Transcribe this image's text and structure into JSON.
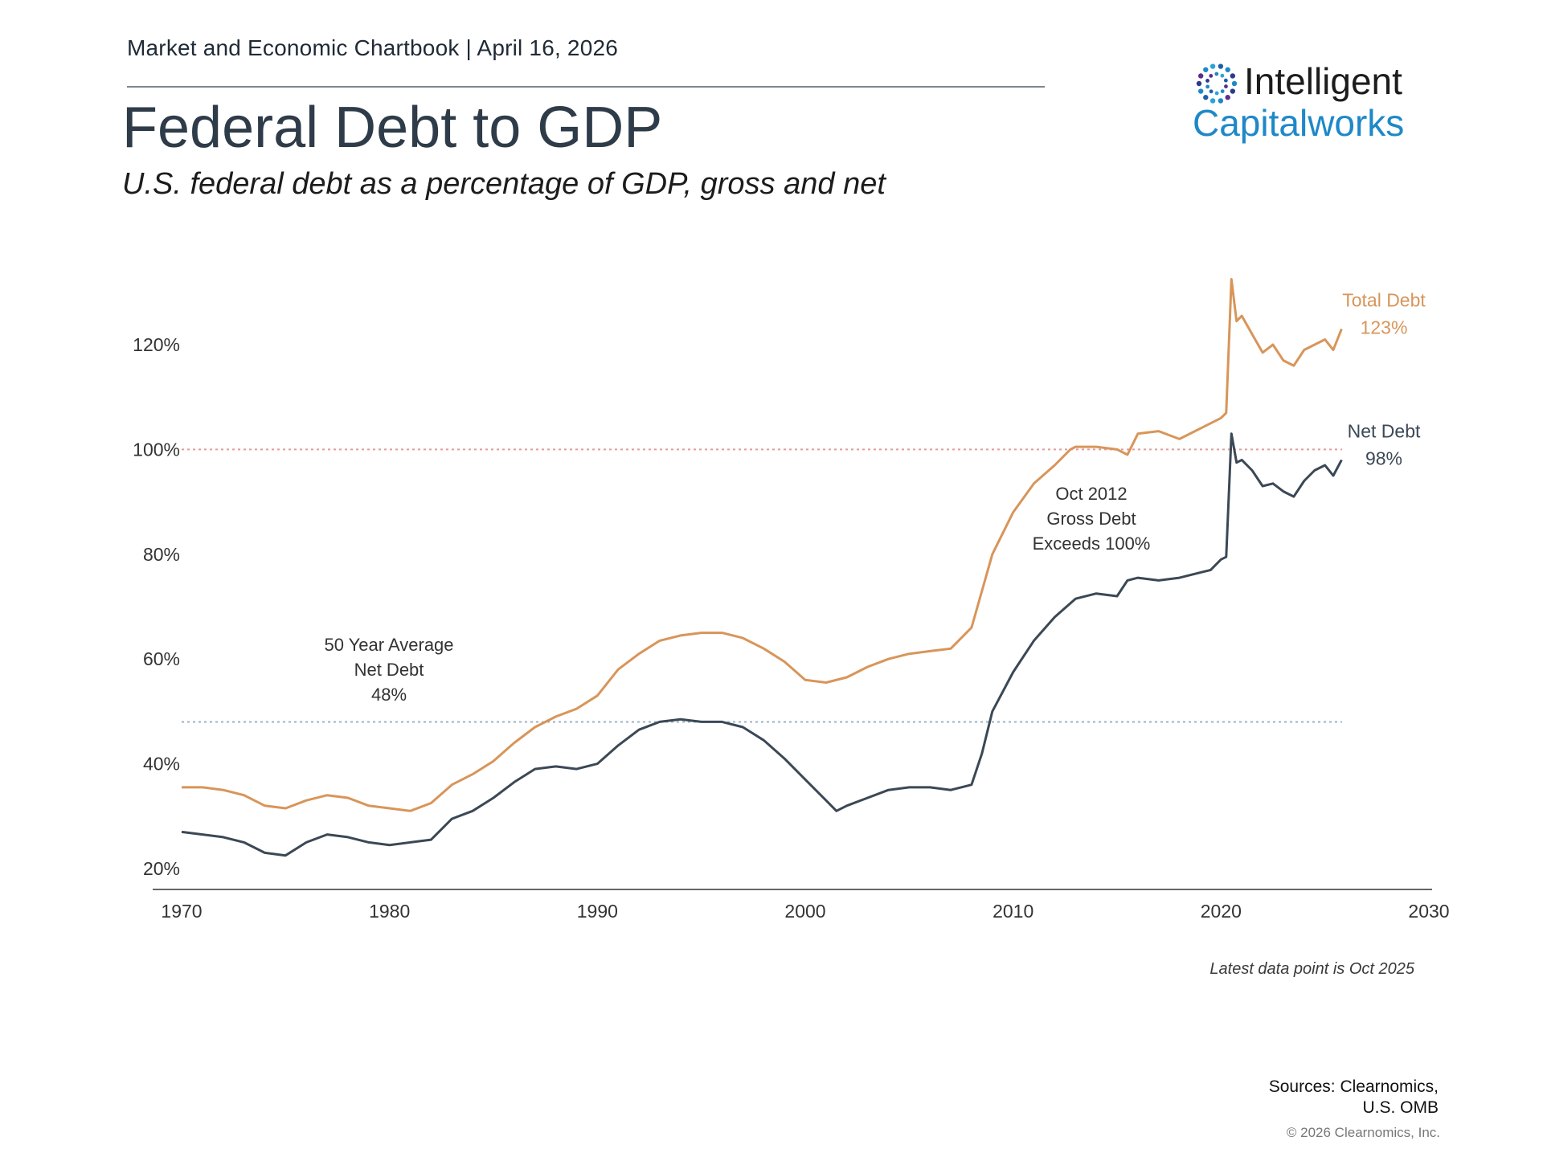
{
  "header": {
    "chartbook": "Market and Economic Chartbook | April 16, 2026",
    "title": "Federal Debt to GDP",
    "subtitle": "U.S. federal debt as a percentage of GDP, gross and net"
  },
  "logo": {
    "line1": "Intelligent",
    "line2": "Capitalworks"
  },
  "footer": {
    "note": "Latest data point is Oct 2025",
    "sources_line1": "Sources: Clearnomics,",
    "sources_line2": "U.S. OMB",
    "copyright": "© 2026 Clearnomics, Inc."
  },
  "colors": {
    "total": "#d8955a",
    "net": "#3b4856",
    "ref100": "#e39a9a",
    "avg": "#9ab3c6"
  },
  "chart_data": {
    "type": "line",
    "title": "",
    "xlabel": "",
    "ylabel": "",
    "xlim": [
      1970,
      2030
    ],
    "ylim": [
      20,
      130
    ],
    "x_ticks": [
      "1970",
      "1980",
      "1990",
      "2000",
      "2010",
      "2020",
      "2030"
    ],
    "x_tick_values": [
      1970,
      1980,
      1990,
      2000,
      2010,
      2020,
      2030
    ],
    "y_ticks": [
      "20%",
      "40%",
      "60%",
      "80%",
      "100%",
      "120%"
    ],
    "y_tick_values": [
      20,
      40,
      60,
      80,
      100,
      120
    ],
    "grid": false,
    "reference_lines": [
      {
        "y": 100,
        "style": "dotted",
        "color": "#e39a9a"
      },
      {
        "y": 48,
        "style": "dotted",
        "color": "#9ab3c6"
      }
    ],
    "series": [
      {
        "name": "Total Debt",
        "end_label": "Total Debt",
        "end_value": "123%",
        "color": "#d8955a",
        "points": [
          [
            1970,
            35.5
          ],
          [
            1971,
            35.5
          ],
          [
            1972,
            35.0
          ],
          [
            1973,
            34.0
          ],
          [
            1974,
            32.0
          ],
          [
            1975,
            31.5
          ],
          [
            1976,
            33.0
          ],
          [
            1977,
            34.0
          ],
          [
            1978,
            33.5
          ],
          [
            1979,
            32.0
          ],
          [
            1980,
            31.5
          ],
          [
            1981,
            31.0
          ],
          [
            1982,
            32.5
          ],
          [
            1983,
            36.0
          ],
          [
            1984,
            38.0
          ],
          [
            1985,
            40.5
          ],
          [
            1986,
            44.0
          ],
          [
            1987,
            47.0
          ],
          [
            1988,
            49.0
          ],
          [
            1989,
            50.5
          ],
          [
            1990,
            53.0
          ],
          [
            1991,
            58.0
          ],
          [
            1992,
            61.0
          ],
          [
            1993,
            63.5
          ],
          [
            1994,
            64.5
          ],
          [
            1995,
            65.0
          ],
          [
            1996,
            65.0
          ],
          [
            1997,
            64.0
          ],
          [
            1998,
            62.0
          ],
          [
            1999,
            59.5
          ],
          [
            2000,
            56.0
          ],
          [
            2001,
            55.5
          ],
          [
            2002,
            56.5
          ],
          [
            2003,
            58.5
          ],
          [
            2004,
            60.0
          ],
          [
            2005,
            61.0
          ],
          [
            2006,
            61.5
          ],
          [
            2007,
            62.0
          ],
          [
            2008,
            66.0
          ],
          [
            2008.5,
            73.0
          ],
          [
            2009,
            80.0
          ],
          [
            2010,
            88.0
          ],
          [
            2011,
            93.5
          ],
          [
            2012,
            97.0
          ],
          [
            2012.75,
            100.0
          ],
          [
            2013,
            100.5
          ],
          [
            2014,
            100.5
          ],
          [
            2015,
            100.0
          ],
          [
            2015.5,
            99.0
          ],
          [
            2016,
            103.0
          ],
          [
            2017,
            103.5
          ],
          [
            2018,
            102.0
          ],
          [
            2019,
            104.0
          ],
          [
            2020,
            106.0
          ],
          [
            2020.25,
            107.0
          ],
          [
            2020.5,
            132.5
          ],
          [
            2020.75,
            124.5
          ],
          [
            2021,
            125.5
          ],
          [
            2021.5,
            122.0
          ],
          [
            2022,
            118.5
          ],
          [
            2022.5,
            120.0
          ],
          [
            2023,
            117.0
          ],
          [
            2023.5,
            116.0
          ],
          [
            2024,
            119.0
          ],
          [
            2024.5,
            120.0
          ],
          [
            2025,
            121.0
          ],
          [
            2025.4,
            119.0
          ],
          [
            2025.8,
            123.0
          ]
        ]
      },
      {
        "name": "Net Debt",
        "end_label": "Net Debt",
        "end_value": "98%",
        "color": "#3b4856",
        "points": [
          [
            1970,
            27.0
          ],
          [
            1971,
            26.5
          ],
          [
            1972,
            26.0
          ],
          [
            1973,
            25.0
          ],
          [
            1974,
            23.0
          ],
          [
            1975,
            22.5
          ],
          [
            1976,
            25.0
          ],
          [
            1977,
            26.5
          ],
          [
            1978,
            26.0
          ],
          [
            1979,
            25.0
          ],
          [
            1980,
            24.5
          ],
          [
            1981,
            25.0
          ],
          [
            1982,
            25.5
          ],
          [
            1983,
            29.5
          ],
          [
            1984,
            31.0
          ],
          [
            1985,
            33.5
          ],
          [
            1986,
            36.5
          ],
          [
            1987,
            39.0
          ],
          [
            1988,
            39.5
          ],
          [
            1989,
            39.0
          ],
          [
            1990,
            40.0
          ],
          [
            1991,
            43.5
          ],
          [
            1992,
            46.5
          ],
          [
            1993,
            48.0
          ],
          [
            1994,
            48.5
          ],
          [
            1995,
            48.0
          ],
          [
            1996,
            48.0
          ],
          [
            1997,
            47.0
          ],
          [
            1998,
            44.5
          ],
          [
            1999,
            41.0
          ],
          [
            2000,
            37.0
          ],
          [
            2001,
            33.0
          ],
          [
            2001.5,
            31.0
          ],
          [
            2002,
            32.0
          ],
          [
            2003,
            33.5
          ],
          [
            2004,
            35.0
          ],
          [
            2005,
            35.5
          ],
          [
            2006,
            35.5
          ],
          [
            2007,
            35.0
          ],
          [
            2008,
            36.0
          ],
          [
            2008.5,
            42.0
          ],
          [
            2009,
            50.0
          ],
          [
            2010,
            57.5
          ],
          [
            2011,
            63.5
          ],
          [
            2012,
            68.0
          ],
          [
            2013,
            71.5
          ],
          [
            2014,
            72.5
          ],
          [
            2015,
            72.0
          ],
          [
            2015.5,
            75.0
          ],
          [
            2016,
            75.5
          ],
          [
            2017,
            75.0
          ],
          [
            2018,
            75.5
          ],
          [
            2019,
            76.5
          ],
          [
            2019.5,
            77.0
          ],
          [
            2020,
            79.0
          ],
          [
            2020.25,
            79.5
          ],
          [
            2020.5,
            103.0
          ],
          [
            2020.75,
            97.5
          ],
          [
            2021,
            98.0
          ],
          [
            2021.5,
            96.0
          ],
          [
            2022,
            93.0
          ],
          [
            2022.5,
            93.5
          ],
          [
            2023,
            92.0
          ],
          [
            2023.5,
            91.0
          ],
          [
            2024,
            94.0
          ],
          [
            2024.5,
            96.0
          ],
          [
            2025,
            97.0
          ],
          [
            2025.4,
            95.0
          ],
          [
            2025.8,
            98.0
          ]
        ]
      }
    ],
    "annotations": [
      {
        "lines": [
          "50 Year Average",
          "Net Debt",
          "48%"
        ]
      },
      {
        "lines": [
          "Oct 2012",
          "Gross Debt",
          "Exceeds 100%"
        ]
      }
    ]
  }
}
